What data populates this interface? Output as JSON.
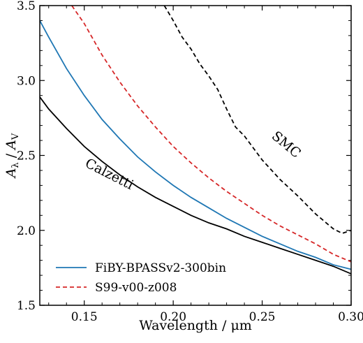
{
  "chart_data": {
    "type": "line",
    "xlabel": "Wavelength / μm",
    "ylabel_parts": [
      "A",
      "λ",
      " / ",
      "A",
      "V"
    ],
    "xlim": [
      0.125,
      0.3
    ],
    "ylim": [
      1.5,
      3.5
    ],
    "xticks": [
      0.15,
      0.2,
      0.25,
      0.3
    ],
    "xtick_labels": [
      "0.15",
      "0.20",
      "0.25",
      "0.30"
    ],
    "yticks": [
      1.5,
      2.0,
      2.5,
      3.0,
      3.5
    ],
    "ytick_labels": [
      "1.5",
      "2.0",
      "2.5",
      "3.0",
      "3.5"
    ],
    "legend_position": "bottom-left",
    "series": [
      {
        "key": "fiby",
        "name": "FiBY-BPASSv2-300bin",
        "color": "#1f77b4",
        "dash": "solid",
        "in_legend": true,
        "x": [
          0.125,
          0.13,
          0.14,
          0.15,
          0.16,
          0.17,
          0.18,
          0.19,
          0.2,
          0.21,
          0.22,
          0.23,
          0.24,
          0.25,
          0.26,
          0.27,
          0.28,
          0.29,
          0.3
        ],
        "y": [
          3.4,
          3.29,
          3.08,
          2.9,
          2.74,
          2.61,
          2.49,
          2.39,
          2.3,
          2.22,
          2.15,
          2.08,
          2.02,
          1.96,
          1.91,
          1.86,
          1.82,
          1.77,
          1.74
        ]
      },
      {
        "key": "s99",
        "name": "S99-v00-z008",
        "color": "#d62728",
        "dash": "dashed",
        "in_legend": true,
        "x": [
          0.143,
          0.15,
          0.16,
          0.17,
          0.18,
          0.19,
          0.2,
          0.21,
          0.22,
          0.23,
          0.24,
          0.25,
          0.26,
          0.27,
          0.28,
          0.29,
          0.3
        ],
        "y": [
          3.5,
          3.38,
          3.17,
          2.99,
          2.83,
          2.69,
          2.56,
          2.45,
          2.35,
          2.26,
          2.18,
          2.1,
          2.03,
          1.97,
          1.91,
          1.84,
          1.79
        ]
      },
      {
        "key": "calzetti",
        "name": "Calzetti",
        "color": "#000000",
        "dash": "solid",
        "in_legend": false,
        "x": [
          0.125,
          0.13,
          0.14,
          0.15,
          0.16,
          0.17,
          0.18,
          0.19,
          0.2,
          0.21,
          0.22,
          0.23,
          0.24,
          0.25,
          0.26,
          0.27,
          0.28,
          0.29,
          0.3
        ],
        "y": [
          2.89,
          2.81,
          2.68,
          2.56,
          2.46,
          2.37,
          2.29,
          2.22,
          2.16,
          2.1,
          2.05,
          2.01,
          1.96,
          1.92,
          1.88,
          1.84,
          1.8,
          1.76,
          1.71
        ]
      },
      {
        "key": "smc",
        "name": "SMC",
        "color": "#000000",
        "dash": "dashed",
        "in_legend": false,
        "x": [
          0.195,
          0.2,
          0.205,
          0.21,
          0.215,
          0.22,
          0.225,
          0.23,
          0.235,
          0.24,
          0.25,
          0.26,
          0.27,
          0.28,
          0.29,
          0.295,
          0.3
        ],
        "y": [
          3.5,
          3.4,
          3.29,
          3.21,
          3.11,
          3.03,
          2.94,
          2.81,
          2.69,
          2.63,
          2.47,
          2.34,
          2.23,
          2.11,
          2.01,
          1.98,
          2.0
        ]
      }
    ],
    "annotations": [
      {
        "text": "Calzetti",
        "series": "calzetti"
      },
      {
        "text": "SMC",
        "series": "smc"
      }
    ]
  }
}
